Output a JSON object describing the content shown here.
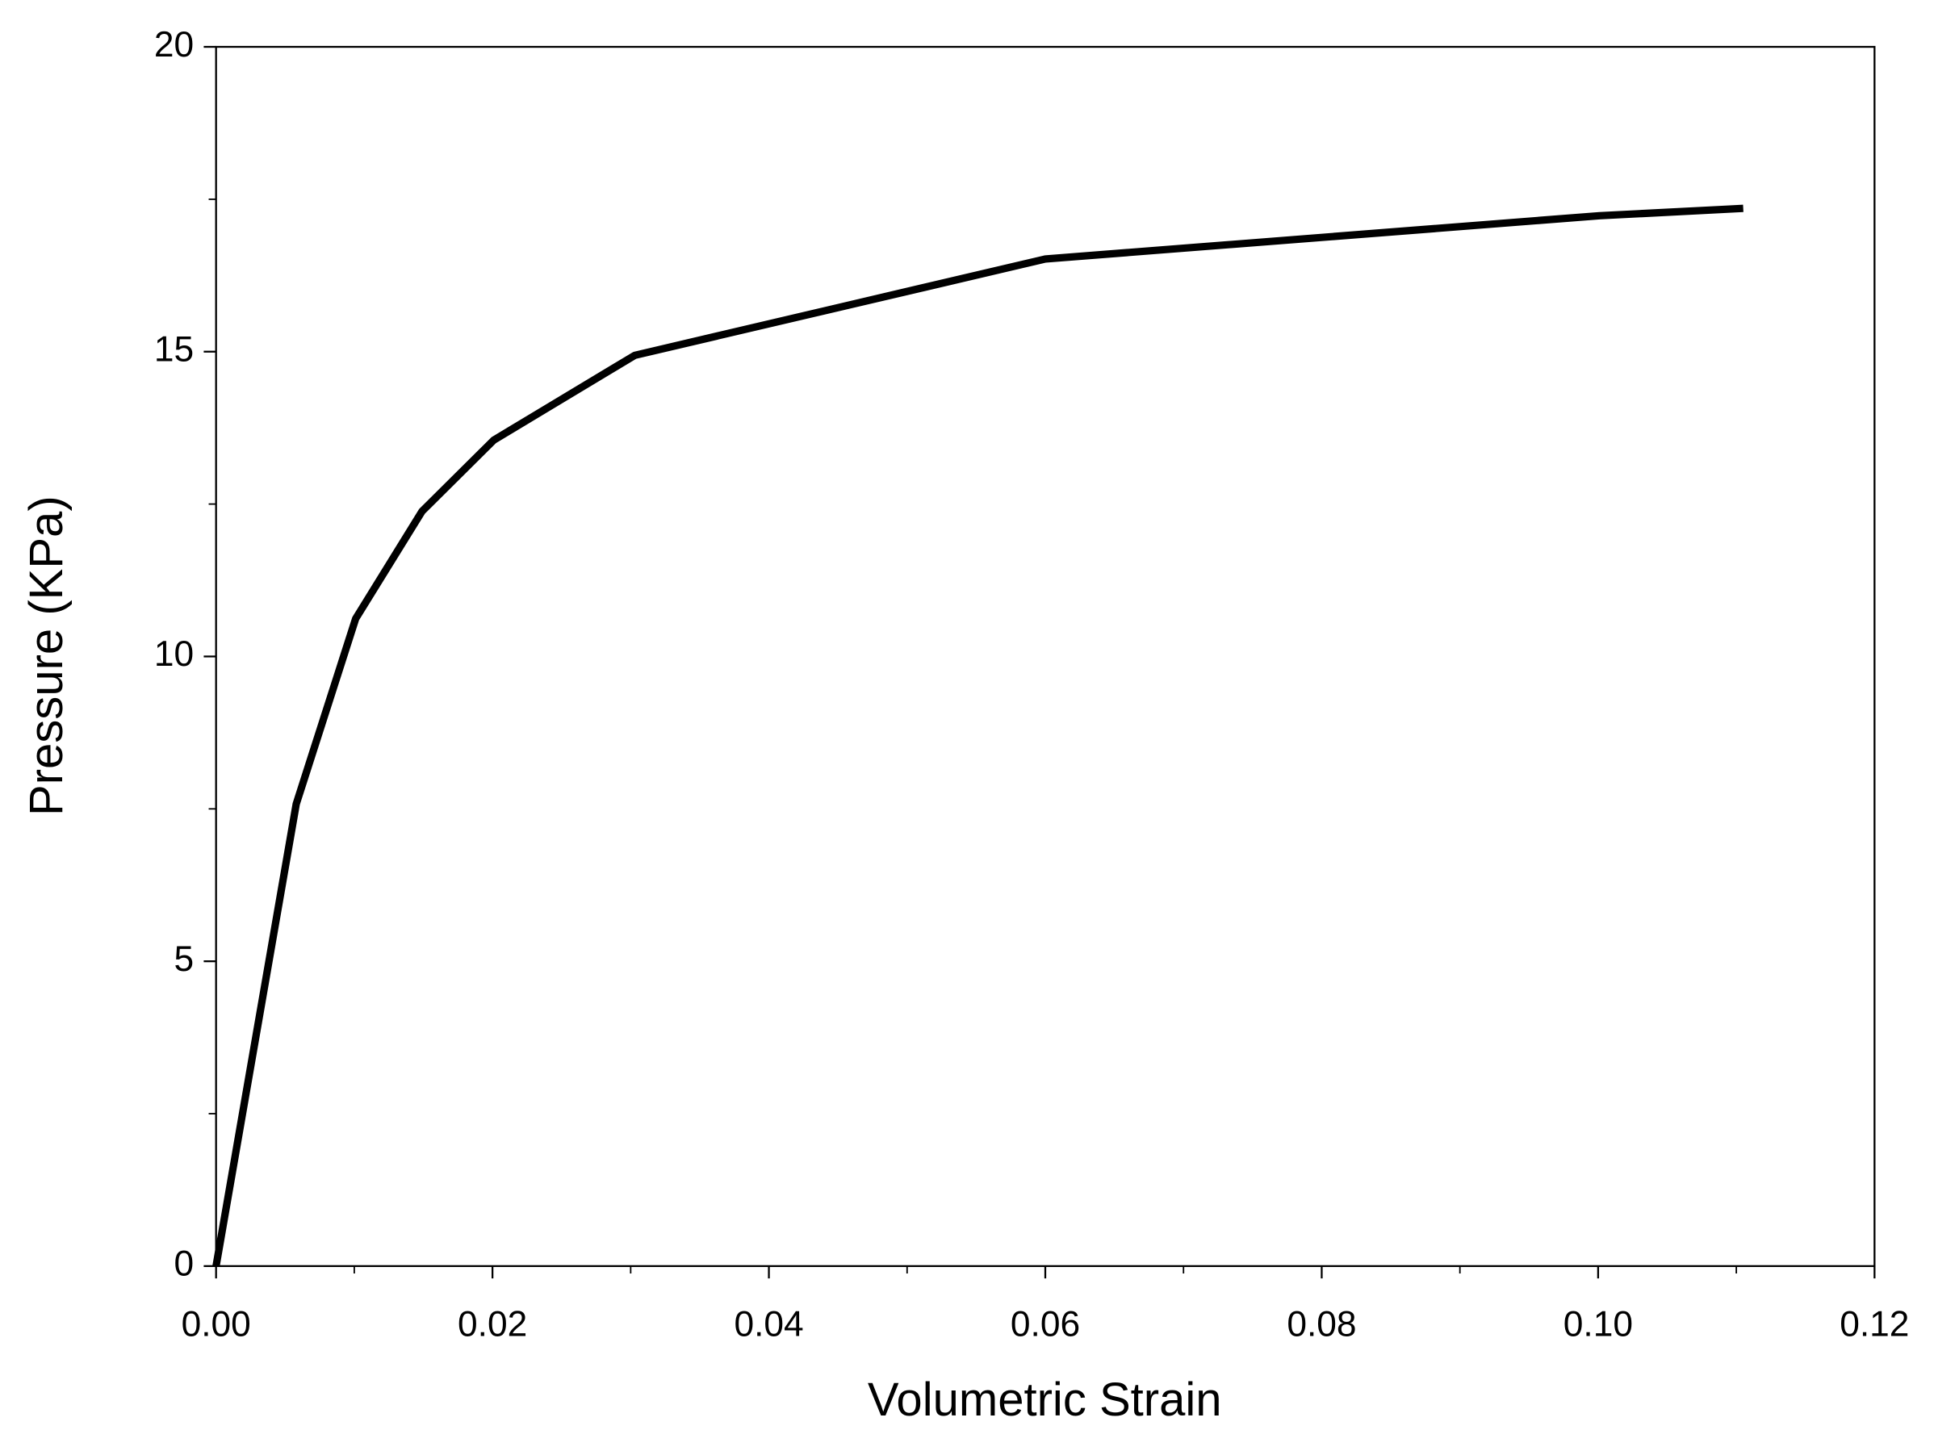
{
  "chart_data": {
    "type": "line",
    "x_label": "Volumetric Strain",
    "y_label": "Pressure (KPa)",
    "series": [
      {
        "color": "#000000",
        "x": [
          0,
          0.0058,
          0.0101,
          0.0149,
          0.0201,
          0.0303,
          0.06,
          0.1001,
          0.1105
        ],
        "values": [
          0,
          7.58,
          10.62,
          12.38,
          13.55,
          14.94,
          16.52,
          17.23,
          17.35
        ]
      }
    ],
    "xlim": [
      0,
      0.12
    ],
    "xticks": [
      {
        "value": 0,
        "label": "0.00"
      },
      {
        "value": 0.02,
        "label": "0.02"
      },
      {
        "value": 0.04,
        "label": "0.04"
      },
      {
        "value": 0.06,
        "label": "0.06"
      },
      {
        "value": 0.08,
        "label": "0.08"
      },
      {
        "value": 0.1,
        "label": "0.10"
      },
      {
        "value": 0.12,
        "label": "0.12"
      }
    ],
    "xminorticks": [
      0.01,
      0.03,
      0.05,
      0.07,
      0.09,
      0.11
    ],
    "ylim": [
      0,
      20
    ],
    "yticks": [
      0,
      5,
      10,
      15,
      20
    ],
    "yminorticks": [
      2.5,
      7.5,
      12.5,
      17.5
    ],
    "grid": false
  }
}
